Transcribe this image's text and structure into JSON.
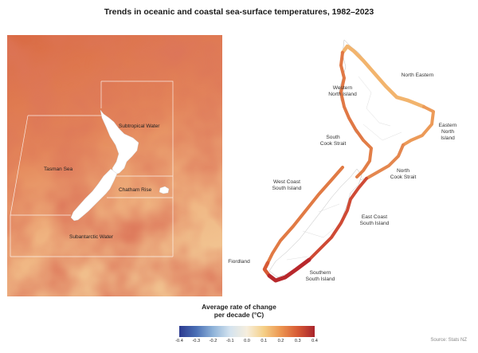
{
  "title": "Trends in oceanic and coastal sea-surface temperatures, 1982–2023",
  "oceanic_map": {
    "regions": [
      {
        "id": "subtropical-water",
        "label": "Subtropical Water"
      },
      {
        "id": "tasman-sea",
        "label": "Tasman Sea"
      },
      {
        "id": "chatham-rise",
        "label": "Chatham Rise"
      },
      {
        "id": "subantarctic-water",
        "label": "Subantarctic Water"
      }
    ]
  },
  "coastal_map": {
    "regions": [
      {
        "id": "north-eastern",
        "lines": [
          "North Eastern"
        ]
      },
      {
        "id": "western-north-island",
        "lines": [
          "Western",
          "North Island"
        ]
      },
      {
        "id": "eastern-north-island",
        "lines": [
          "Eastern",
          "North",
          "Island"
        ]
      },
      {
        "id": "south-cook-strait",
        "lines": [
          "South",
          "Cook Strait"
        ]
      },
      {
        "id": "north-cook-strait",
        "lines": [
          "North",
          "Cook Strait"
        ]
      },
      {
        "id": "west-coast-south-island",
        "lines": [
          "West Coast",
          "South Island"
        ]
      },
      {
        "id": "east-coast-south-island",
        "lines": [
          "East Coast",
          "South Island"
        ]
      },
      {
        "id": "fiordland",
        "lines": [
          "Fiordland"
        ]
      },
      {
        "id": "southern-south-island",
        "lines": [
          "Southern",
          "South Island"
        ]
      }
    ]
  },
  "legend": {
    "title_line1": "Average rate of change",
    "title_line2": "per decade (°C)",
    "ticks": [
      "-0.4",
      "-0.3",
      "-0.2",
      "-0.1",
      "0.0",
      "0.1",
      "0.2",
      "0.3",
      "0.4"
    ],
    "min": -0.4,
    "max": 0.4,
    "colors": [
      "#2b3a8f",
      "#4a6fb5",
      "#8fb3d9",
      "#d4e3ef",
      "#f6eedd",
      "#f5cf86",
      "#ec9550",
      "#d75a35",
      "#a8242c"
    ]
  },
  "source": "Source: Stats NZ"
}
